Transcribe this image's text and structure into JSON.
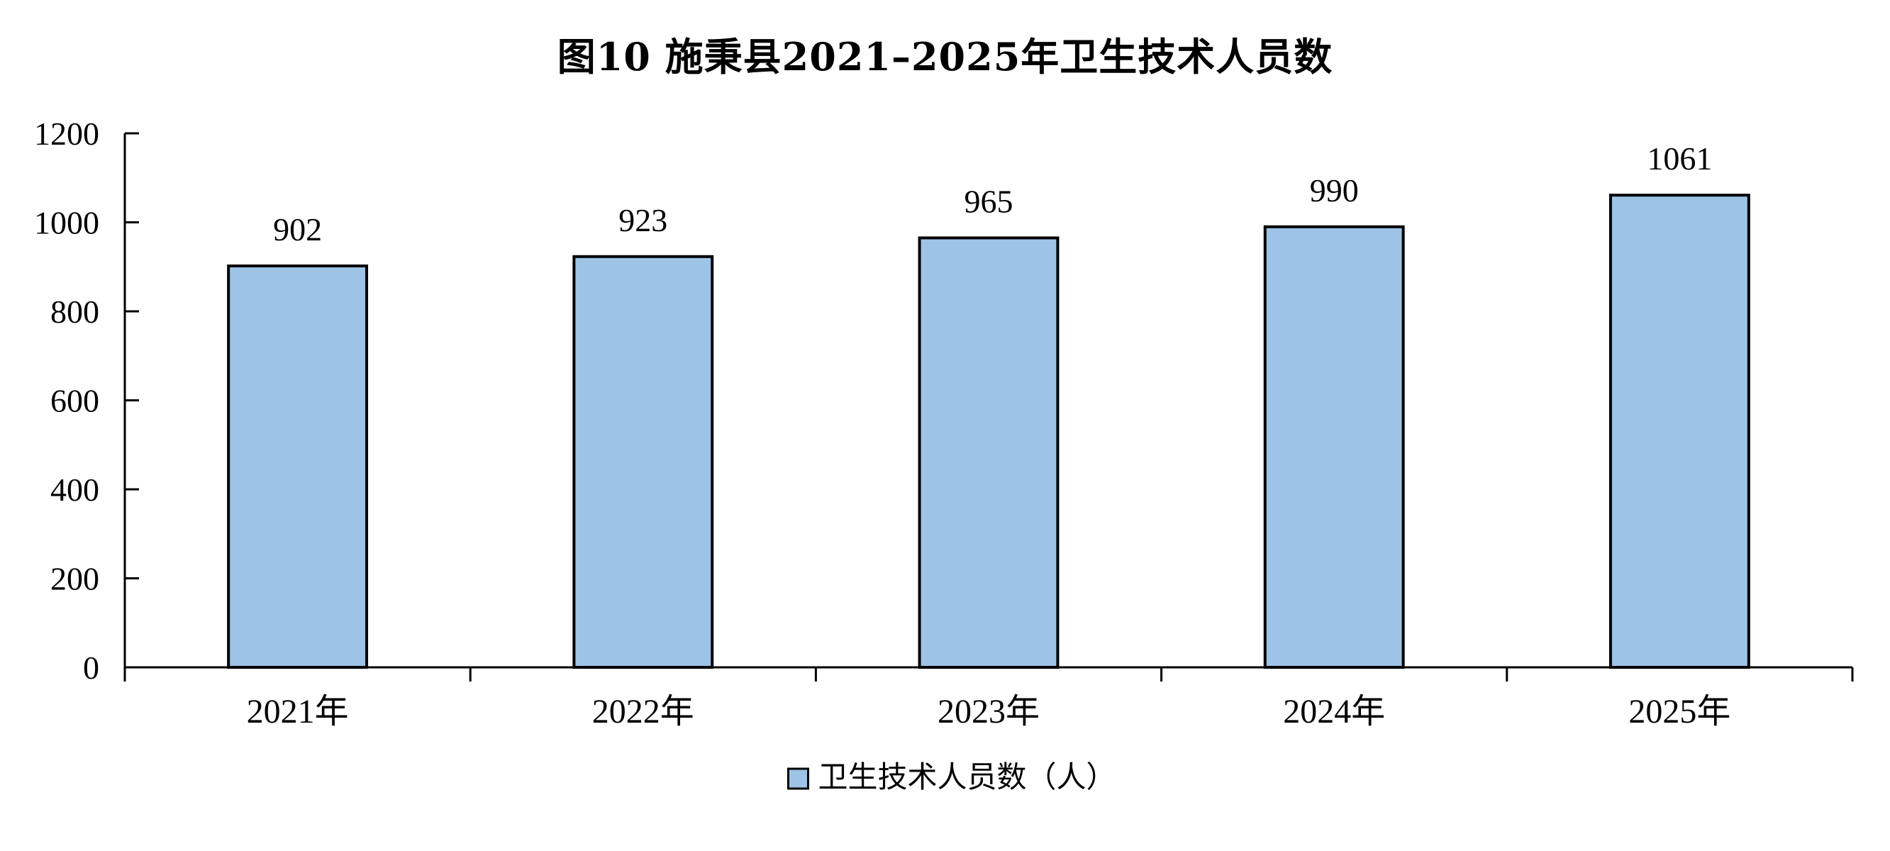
{
  "chart_data": {
    "type": "bar",
    "title": "图10  施秉县2021–2025年卫生技术人员数",
    "categories": [
      "2021年",
      "2022年",
      "2023年",
      "2024年",
      "2025年"
    ],
    "series": [
      {
        "name": "卫生技术人员数（人）",
        "values": [
          902,
          923,
          965,
          990,
          1061
        ],
        "color": "#9DC3E6"
      }
    ],
    "data_labels": [
      "902",
      "923",
      "965",
      "990",
      "1061"
    ],
    "xlabel": "",
    "ylabel": "",
    "ylim": [
      0,
      1200
    ],
    "yticks": [
      "0",
      "200",
      "400",
      "600",
      "800",
      "1000",
      "1200"
    ],
    "grid": false,
    "legend_position": "bottom"
  }
}
